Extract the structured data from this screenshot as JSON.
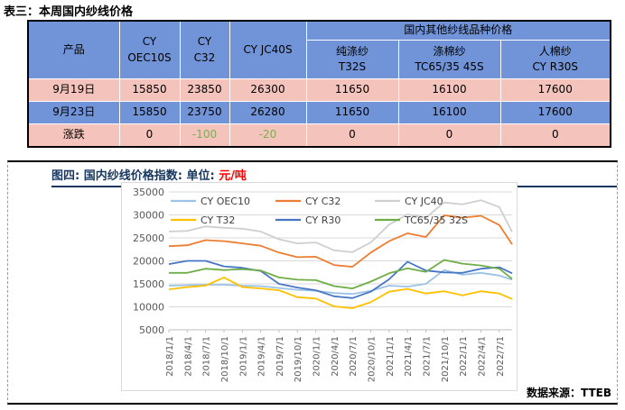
{
  "table": {
    "title": "表三：本周国内纱线价格",
    "header": {
      "main_columns": [
        {
          "lines": [
            "产品"
          ]
        },
        {
          "lines": [
            "CY",
            "OEC10S"
          ]
        },
        {
          "lines": [
            "CY",
            "C32"
          ]
        },
        {
          "lines": [
            "CY JC40S"
          ]
        }
      ],
      "group_label": "国内其他纱线品种价格",
      "sub_columns": [
        {
          "lines": [
            "纯涤纱",
            "T32S"
          ]
        },
        {
          "lines": [
            "涤棉纱",
            "TC65/35 45S"
          ]
        },
        {
          "lines": [
            "人棉纱",
            "CY R30S"
          ]
        }
      ]
    },
    "rows": [
      {
        "label": "9月19日",
        "values": [
          "15850",
          "23850",
          "26300",
          "11650",
          "16100",
          "17600"
        ]
      },
      {
        "label": "9月23日",
        "values": [
          "15850",
          "23750",
          "26280",
          "11650",
          "16100",
          "17600"
        ]
      },
      {
        "label": "涨跌",
        "values": [
          "0",
          "-100",
          "-20",
          "0",
          "0",
          "0"
        ]
      }
    ]
  },
  "figure": {
    "title_prefix": "图四: 国内纱线价格指数: 单位: ",
    "title_unit": "元/吨",
    "source_note": "数据来源：TTEB"
  },
  "colors": {
    "header_blue": "#7193d7",
    "row_pink": "#f4c3bc",
    "negative_text": "#7cae53",
    "figure_title_navy": "#17375e",
    "figure_unit_red": "#ff0000",
    "gridline": "#d9d9d9",
    "axis_line": "#bfbfbf",
    "axis_text": "#595959"
  },
  "chart_data": {
    "type": "line",
    "title": "图四: 国内纱线价格指数",
    "ylabel": "",
    "xlabel": "",
    "unit": "元/吨",
    "grid": "horizontal",
    "legend_position": "top-inside-two-rows",
    "ylim": [
      5000,
      35000
    ],
    "yticks": [
      5000,
      10000,
      15000,
      20000,
      25000,
      30000,
      35000
    ],
    "x_tick_labels": [
      "2018/1/1",
      "2018/4/1",
      "2018/7/1",
      "2018/10/1",
      "2019/1/1",
      "2019/4/1",
      "2019/7/1",
      "2019/10/1",
      "2020/1/1",
      "2020/4/1",
      "2020/7/1",
      "2020/10/1",
      "2021/1/1",
      "2021/4/1",
      "2021/7/1",
      "2021/10/1",
      "2022/1/1",
      "2022/4/1",
      "2022/7/1"
    ],
    "x_index": [
      0,
      1,
      2,
      3,
      4,
      5,
      6,
      7,
      8,
      9,
      10,
      11,
      12,
      13,
      14,
      15,
      16,
      17,
      18,
      18.7
    ],
    "series": [
      {
        "name": "CY OEC10",
        "color": "#9cc2e5",
        "values": [
          14600,
          14700,
          14800,
          14800,
          14600,
          14500,
          14100,
          13700,
          13500,
          13000,
          12800,
          13500,
          14600,
          14400,
          15000,
          18000,
          17000,
          17400,
          16800,
          15900
        ]
      },
      {
        "name": "CY C32",
        "color": "#ed7d31",
        "values": [
          23200,
          23400,
          24500,
          24300,
          23800,
          23300,
          21800,
          20800,
          20900,
          19100,
          18700,
          21800,
          24300,
          26000,
          25200,
          29900,
          29400,
          29800,
          27800,
          23600
        ]
      },
      {
        "name": "CY JC40",
        "color": "#d0cece",
        "values": [
          26400,
          26500,
          27500,
          27200,
          27000,
          26400,
          24700,
          23800,
          24000,
          22300,
          21900,
          24000,
          27900,
          30100,
          29400,
          32700,
          32300,
          33200,
          31700,
          26300
        ]
      },
      {
        "name": "CY T32",
        "color": "#ffc000",
        "values": [
          13800,
          14300,
          14600,
          16400,
          14300,
          14000,
          13600,
          12100,
          11800,
          10100,
          9700,
          11000,
          13300,
          13900,
          12900,
          13400,
          12500,
          13400,
          12900,
          11700
        ]
      },
      {
        "name": "CY R30",
        "color": "#4776c5",
        "values": [
          19300,
          20000,
          20000,
          18800,
          18500,
          17800,
          15000,
          14200,
          13600,
          12300,
          11900,
          13300,
          16000,
          19800,
          17900,
          17500,
          17400,
          18300,
          18600,
          17300
        ]
      },
      {
        "name": "TC65/35 32S",
        "color": "#70ad47",
        "values": [
          17400,
          17400,
          18300,
          18000,
          18200,
          17900,
          16400,
          15900,
          15800,
          14500,
          14000,
          15500,
          17300,
          18400,
          17600,
          20200,
          19400,
          19000,
          18300,
          16100
        ]
      }
    ]
  }
}
